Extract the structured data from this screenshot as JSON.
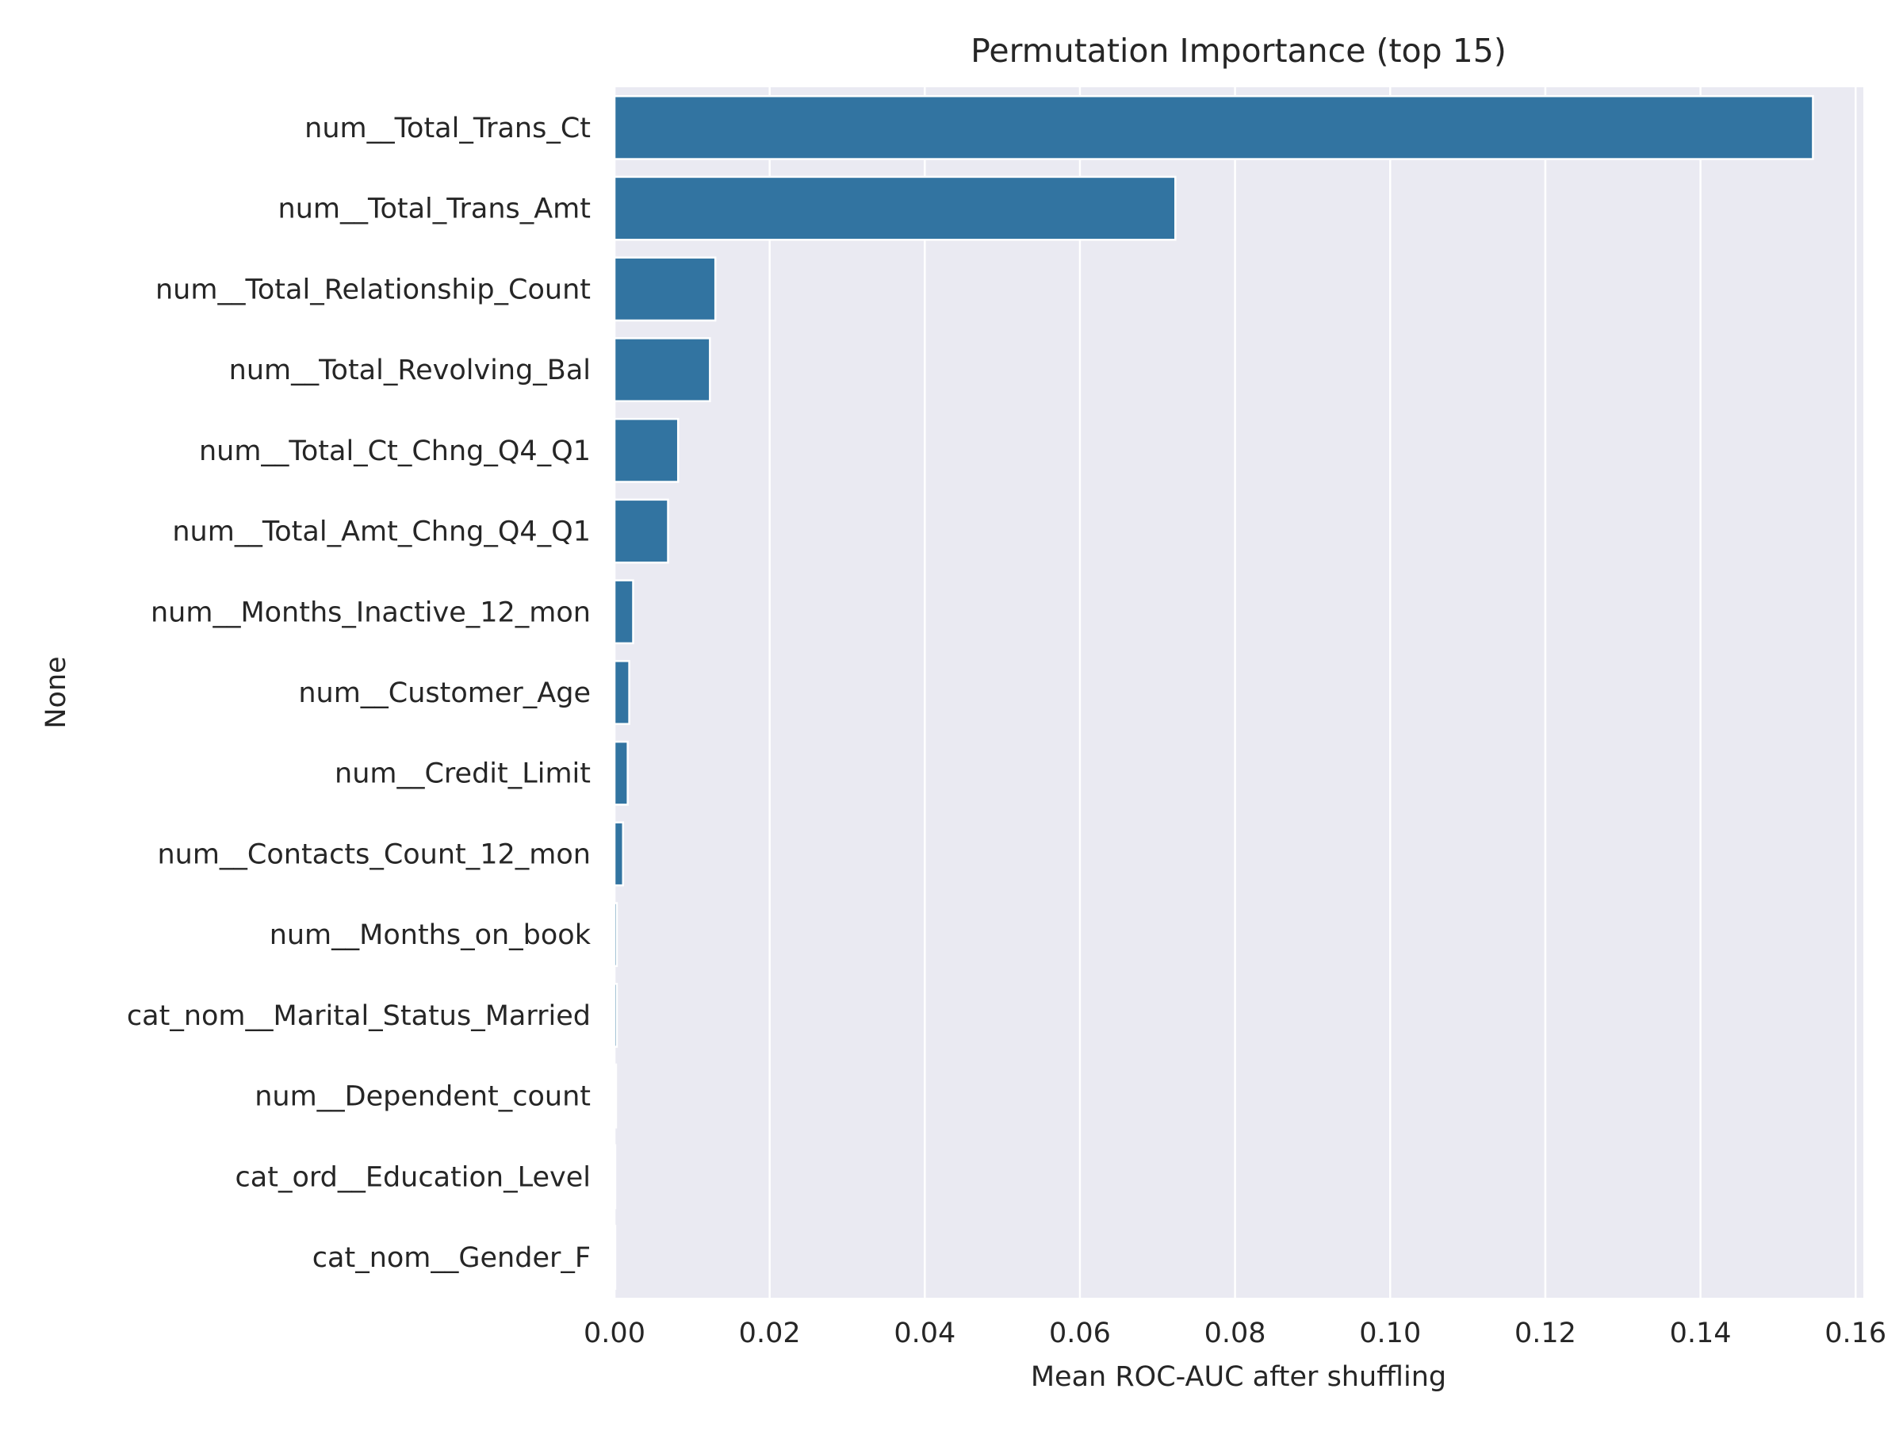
{
  "chart_data": {
    "type": "bar",
    "orientation": "horizontal",
    "title": "Permutation Importance (top 15)",
    "xlabel": "Mean ROC-AUC after shuffling",
    "ylabel": "None",
    "xlim": [
      0,
      0.161
    ],
    "xticks": [
      0.0,
      0.02,
      0.04,
      0.06,
      0.08,
      0.1,
      0.12,
      0.14,
      0.16
    ],
    "xtick_labels": [
      "0.00",
      "0.02",
      "0.04",
      "0.06",
      "0.08",
      "0.10",
      "0.12",
      "0.14",
      "0.16"
    ],
    "grid": true,
    "colors": {
      "background": "#eaeaf2",
      "bar": "#3274a1",
      "grid": "#ffffff",
      "text": "#262626"
    },
    "categories": [
      "num__Total_Trans_Ct",
      "num__Total_Trans_Amt",
      "num__Total_Relationship_Count",
      "num__Total_Revolving_Bal",
      "num__Total_Ct_Chng_Q4_Q1",
      "num__Total_Amt_Chng_Q4_Q1",
      "num__Months_Inactive_12_mon",
      "num__Customer_Age",
      "num__Credit_Limit",
      "num__Contacts_Count_12_mon",
      "num__Months_on_book",
      "cat_nom__Marital_Status_Married",
      "num__Dependent_count",
      "cat_ord__Education_Level",
      "cat_nom__Gender_F"
    ],
    "values": [
      0.1545,
      0.0723,
      0.013,
      0.0123,
      0.0082,
      0.0069,
      0.0024,
      0.0019,
      0.0017,
      0.0011,
      0.0003,
      0.0003,
      0.0002,
      0.0001,
      0.0001
    ]
  }
}
